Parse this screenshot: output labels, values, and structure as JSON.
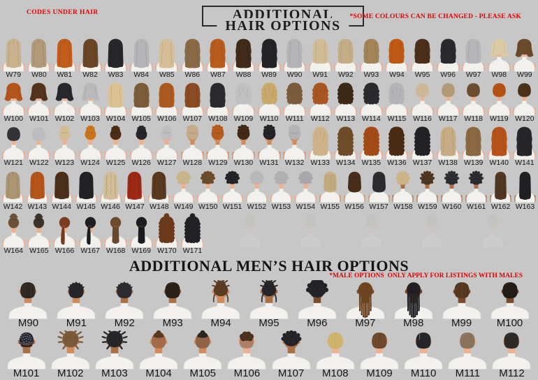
{
  "header": {
    "codes_note": "CODES UNDER HAIR",
    "title_line1": "ADDITIONAL",
    "title_line2": "HAIR OPTIONS",
    "colors_note": "*SOME COLOURS CAN BE CHANGED - PLEASE ASK"
  },
  "mens_header": {
    "title": "ADDITIONAL MEN’S HAIR OPTIONS",
    "note": "*MALE OPTIONS  ONLY APPLY FOR LISTINGS WITH MALES"
  },
  "palette": {
    "background": "#c7c7c7",
    "accent_red": "#e80000",
    "title_color": "#1d1d1d",
    "label_color": "#141414",
    "shirt": "#f2f1ee",
    "shirt_stroke": "#d8d7d3",
    "ghost": "#b3aa97",
    "skins": {
      "light": [
        "#f3a98c",
        "#eab294"
      ],
      "tan": [
        "#d68e60",
        "#cf8a5e"
      ],
      "medium": [
        "#b0764c",
        "#a96f47"
      ],
      "deep": [
        "#855231",
        "#7a4a2c"
      ]
    }
  },
  "women_rows": [
    [
      {
        "code": "W79",
        "style": "straight",
        "color": "#c9b28d"
      },
      {
        "code": "W80",
        "style": "straight",
        "color": "#b29979"
      },
      {
        "code": "W81",
        "style": "straight",
        "color": "#c05d1a"
      },
      {
        "code": "W82",
        "style": "straight",
        "color": "#6a4526"
      },
      {
        "code": "W83",
        "style": "straight",
        "color": "#27272b"
      },
      {
        "code": "W84",
        "style": "straight",
        "color": "#b5b5b8"
      },
      {
        "code": "W85",
        "style": "wavy",
        "color": "#d4bd97"
      },
      {
        "code": "W86",
        "style": "wavy",
        "color": "#8a6a45"
      },
      {
        "code": "W87",
        "style": "wavy",
        "color": "#b75c1d"
      },
      {
        "code": "W88",
        "style": "wavy",
        "color": "#402a18"
      },
      {
        "code": "W89",
        "style": "wavy",
        "color": "#232327"
      },
      {
        "code": "W90",
        "style": "wavy",
        "color": "#b4b4b7"
      },
      {
        "code": "W91",
        "style": "wavyMed",
        "color": "#d2bc95"
      },
      {
        "code": "W92",
        "style": "wavyMed",
        "color": "#c4ae88"
      },
      {
        "code": "W93",
        "style": "wavyMed",
        "color": "#a28457"
      },
      {
        "code": "W94",
        "style": "wavyMed",
        "color": "#c05914"
      },
      {
        "code": "W95",
        "style": "wavyMed",
        "color": "#4a2f1b"
      },
      {
        "code": "W96",
        "style": "wavyMed",
        "color": "#2a2a2e"
      },
      {
        "code": "W97",
        "style": "wavyMed",
        "color": "#b6b6b9"
      },
      {
        "code": "W98",
        "style": "wavyShort",
        "color": "#dccaa5"
      },
      {
        "code": "W99",
        "style": "wavyShort",
        "color": "#6b4a2c"
      }
    ],
    [
      {
        "code": "W100",
        "style": "wavyShort",
        "color": "#b4561c"
      },
      {
        "code": "W101",
        "style": "wavyShort",
        "color": "#54331d"
      },
      {
        "code": "W102",
        "style": "wavyShort",
        "color": "#28282c"
      },
      {
        "code": "W103",
        "style": "wavyShort",
        "color": "#b9b9bc"
      },
      {
        "code": "W104",
        "style": "wavyMed",
        "color": "#dcc293"
      },
      {
        "code": "W105",
        "style": "wavyMed",
        "color": "#7b5d3a"
      },
      {
        "code": "W106",
        "style": "wavyMed",
        "color": "#ad5a20"
      },
      {
        "code": "W107",
        "style": "wavyMed",
        "color": "#8a4a22"
      },
      {
        "code": "W108",
        "style": "wavyMed",
        "color": "#2b2b2f"
      },
      {
        "code": "W109",
        "style": "curlyMed",
        "color": "#c0c0c3"
      },
      {
        "code": "W110",
        "style": "curlyMed",
        "color": "#c9a96b"
      },
      {
        "code": "W111",
        "style": "curlyMed",
        "color": "#7a5c3d"
      },
      {
        "code": "W112",
        "style": "curlyMed",
        "color": "#a85522"
      },
      {
        "code": "W113",
        "style": "curlyMed",
        "color": "#3d2918"
      },
      {
        "code": "W114",
        "style": "curlyMed",
        "color": "#2b2b2e"
      },
      {
        "code": "W115",
        "style": "curlyMed",
        "color": "#b4b4b7"
      },
      {
        "code": "W116",
        "style": "crop",
        "color": "#ccb897"
      },
      {
        "code": "W117",
        "style": "crop",
        "color": "#b29a78"
      },
      {
        "code": "W118",
        "style": "crop",
        "color": "#6b4c2e"
      },
      {
        "code": "W119",
        "style": "crop",
        "color": "#b35013"
      },
      {
        "code": "W120",
        "style": "crop",
        "color": "#4c3119"
      }
    ],
    [
      {
        "code": "W121",
        "style": "crop",
        "color": "#333337"
      },
      {
        "code": "W122",
        "style": "crop",
        "color": "#bcbcbf"
      },
      {
        "code": "W123",
        "style": "bun",
        "color": "#d3bd93"
      },
      {
        "code": "W124",
        "style": "bun",
        "color": "#c8741f"
      },
      {
        "code": "W125",
        "style": "bun",
        "color": "#4a2c17"
      },
      {
        "code": "W126",
        "style": "bun",
        "color": "#26262a"
      },
      {
        "code": "W127",
        "style": "bun",
        "color": "#bebec1"
      },
      {
        "code": "W128",
        "style": "afroBun",
        "color": "#c3ab8a",
        "skin": "tan"
      },
      {
        "code": "W129",
        "style": "afroBun",
        "color": "#b55b1e",
        "skin": "tan"
      },
      {
        "code": "W130",
        "style": "afroBun",
        "color": "#3f2917",
        "skin": "tan"
      },
      {
        "code": "W131",
        "style": "afroBun",
        "color": "#232327",
        "skin": "tan"
      },
      {
        "code": "W132",
        "style": "afroBun",
        "color": "#b3b3b6",
        "skin": "tan"
      },
      {
        "code": "W133",
        "style": "curlyLong",
        "color": "#cdb389"
      },
      {
        "code": "W134",
        "style": "curlyLong",
        "color": "#6f4c29"
      },
      {
        "code": "W135",
        "style": "curlyLong",
        "color": "#a34b16"
      },
      {
        "code": "W136",
        "style": "curlyLong",
        "color": "#4a2c15"
      },
      {
        "code": "W137",
        "style": "curlyLong",
        "color": "#222226"
      },
      {
        "code": "W138",
        "style": "wavy",
        "color": "#c5ac85"
      },
      {
        "code": "W139",
        "style": "wavy",
        "color": "#8a6841"
      },
      {
        "code": "W140",
        "style": "wavy",
        "color": "#b5531a"
      },
      {
        "code": "W141",
        "style": "wavy",
        "color": "#26262a"
      }
    ],
    [
      {
        "code": "W142",
        "style": "straight",
        "color": "#ab9572"
      },
      {
        "code": "W143",
        "style": "straight",
        "color": "#b4561c"
      },
      {
        "code": "W144",
        "style": "straight",
        "color": "#4c2f1a"
      },
      {
        "code": "W145",
        "style": "straight",
        "color": "#222226"
      },
      {
        "code": "W146",
        "style": "crimped",
        "color": "#d2bd96"
      },
      {
        "code": "W147",
        "style": "crimped",
        "color": "#9e2a16"
      },
      {
        "code": "W148",
        "style": "crimped",
        "color": "#5a3a20"
      },
      {
        "code": "W149",
        "style": "curlyCrop",
        "color": "#c9b48a"
      },
      {
        "code": "W150",
        "style": "curlyCrop",
        "color": "#6b4a2b"
      },
      {
        "code": "W151",
        "style": "curlyCrop",
        "color": "#232327"
      },
      {
        "code": "W152",
        "style": "curlyCrop",
        "color": "#b8b8bb"
      },
      {
        "code": "W153",
        "style": "curlyCrop",
        "color": "#b0b0b3"
      },
      {
        "code": "W154",
        "style": "curlyCrop",
        "color": "#a8a8ab"
      },
      {
        "code": "W155",
        "style": "locsMed",
        "color": "#c9b184",
        "skin": "tan"
      },
      {
        "code": "W156",
        "style": "locsMed",
        "color": "#4a301c",
        "skin": "tan"
      },
      {
        "code": "W157",
        "style": "locsMed",
        "color": "#2e2e32",
        "skin": "tan"
      },
      {
        "code": "W158",
        "style": "twistShort",
        "color": "#ccb387",
        "skin": "medium"
      },
      {
        "code": "W159",
        "style": "twistShort",
        "color": "#4c3420",
        "skin": "medium"
      },
      {
        "code": "W160",
        "style": "twistShort",
        "color": "#2c2c30",
        "skin": "medium"
      },
      {
        "code": "W161",
        "style": "twistShort",
        "color": "#2a2a2e",
        "skin": "medium"
      },
      {
        "code": "W162",
        "style": "locsLong",
        "color": "#543924",
        "skin": "medium"
      },
      {
        "code": "W163",
        "style": "locsLong",
        "color": "#222226",
        "skin": "medium"
      }
    ],
    [
      {
        "code": "W164",
        "style": "topknot",
        "color": "#6b5138"
      },
      {
        "code": "W165",
        "style": "topknot",
        "color": "#3a342c"
      },
      {
        "code": "W166",
        "style": "pony",
        "color": "#7a3c20"
      },
      {
        "code": "W167",
        "style": "pony",
        "color": "#1e1e22"
      },
      {
        "code": "W168",
        "style": "ponyLong",
        "color": "#6b4a2e"
      },
      {
        "code": "W169",
        "style": "ponyLong",
        "color": "#1c1c20"
      },
      {
        "code": "W170",
        "style": "halfUp",
        "color": "#6b3a1c"
      },
      {
        "code": "W171",
        "style": "halfUp",
        "color": "#222226"
      }
    ]
  ],
  "men_rows": [
    [
      {
        "code": "M90",
        "style": "comb",
        "color": "#2e2620",
        "skin": "tan"
      },
      {
        "code": "M91",
        "style": "spiky",
        "color": "#26262a",
        "skin": "tan"
      },
      {
        "code": "M92",
        "style": "spiky",
        "color": "#2b2b30",
        "skin": "medium"
      },
      {
        "code": "M93",
        "style": "short",
        "color": "#2a201a",
        "skin": "medium"
      },
      {
        "code": "M94",
        "style": "locsBun",
        "color": "#5a3c24",
        "skin": "tan"
      },
      {
        "code": "M95",
        "style": "locsBun",
        "color": "#26262a",
        "skin": "medium"
      },
      {
        "code": "M96",
        "style": "afro",
        "color": "#232327",
        "skin": "deep"
      },
      {
        "code": "M97",
        "style": "braidsLong",
        "color": "#6b431f",
        "skin": "deep"
      },
      {
        "code": "M98",
        "style": "braidsLong",
        "color": "#1e1e22",
        "skin": "deep"
      },
      {
        "code": "M99",
        "style": "waves",
        "color": "#5a3a22",
        "skin": "deep"
      },
      {
        "code": "M100",
        "style": "short",
        "color": "#231d18",
        "skin": "deep"
      }
    ],
    [
      {
        "code": "M101",
        "style": "cap",
        "color": "#272730",
        "skin": "medium"
      },
      {
        "code": "M102",
        "style": "dreadsSpiky",
        "color": "#7a5a38",
        "skin": "tan"
      },
      {
        "code": "M103",
        "style": "dreadsSpiky",
        "color": "#26262a",
        "skin": "medium"
      },
      {
        "code": "M104",
        "style": "topknotFade",
        "color": "#5c3a22",
        "skin": "tan"
      },
      {
        "code": "M105",
        "style": "topknotFade",
        "color": "#2b2520",
        "skin": "tan"
      },
      {
        "code": "M106",
        "style": "curlyFade",
        "color": "#4c2f1c",
        "skin": "light"
      },
      {
        "code": "M107",
        "style": "curlyTop",
        "color": "#232327",
        "skin": "medium"
      },
      {
        "code": "M108",
        "style": "comb",
        "color": "#cdb26a",
        "skin": "light"
      },
      {
        "code": "M109",
        "style": "comb",
        "color": "#6b462a",
        "skin": "light"
      },
      {
        "code": "M110",
        "style": "sidePart",
        "color": "#26262a",
        "skin": "light"
      },
      {
        "code": "M111",
        "style": "short",
        "color": "#8a735c",
        "skin": "light"
      },
      {
        "code": "M112",
        "style": "short",
        "color": "#2e2a28",
        "skin": "light"
      }
    ]
  ]
}
